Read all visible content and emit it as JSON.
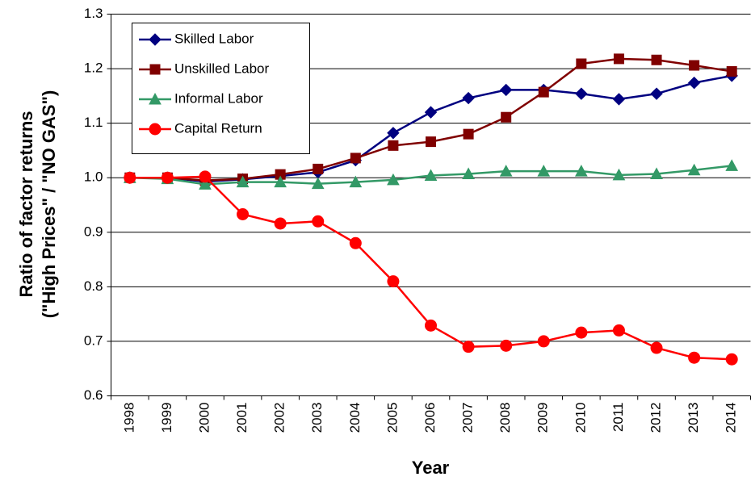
{
  "chart_data": {
    "type": "line",
    "ylabel": [
      "Ratio of factor returns",
      "(\"High Prices\" / \"NO GAS\")"
    ],
    "xlabel": "Year",
    "categories": [
      "1998",
      "1999",
      "2000",
      "2001",
      "2002",
      "2003",
      "2004",
      "2005",
      "2006",
      "2007",
      "2008",
      "2009",
      "2010",
      "2011",
      "2012",
      "2013",
      "2014"
    ],
    "series": [
      {
        "name": "Skilled Labor",
        "color": "#000080",
        "marker": "diamond",
        "values": [
          1.0,
          1.0,
          0.993,
          0.997,
          1.003,
          1.01,
          1.032,
          1.082,
          1.12,
          1.146,
          1.161,
          1.161,
          1.154,
          1.144,
          1.154,
          1.174,
          1.187
        ]
      },
      {
        "name": "Unskilled Labor",
        "color": "#800000",
        "marker": "square",
        "values": [
          1.0,
          1.0,
          0.995,
          0.998,
          1.006,
          1.016,
          1.036,
          1.059,
          1.066,
          1.08,
          1.111,
          1.157,
          1.209,
          1.218,
          1.216,
          1.206,
          1.195
        ]
      },
      {
        "name": "Informal Labor",
        "color": "#339966",
        "marker": "triangle",
        "values": [
          1.0,
          0.998,
          0.988,
          0.992,
          0.992,
          0.989,
          0.992,
          0.996,
          1.004,
          1.007,
          1.012,
          1.012,
          1.012,
          1.005,
          1.007,
          1.014,
          1.022
        ]
      },
      {
        "name": "Capital Return",
        "color": "#ff0000",
        "marker": "circle",
        "values": [
          1.0,
          1.0,
          1.002,
          0.933,
          0.916,
          0.92,
          0.88,
          0.81,
          0.729,
          0.69,
          0.692,
          0.7,
          0.716,
          0.72,
          0.688,
          0.67,
          0.667
        ]
      }
    ],
    "ylim": [
      0.6,
      1.3
    ],
    "yticks": [
      0.6,
      0.7,
      0.8,
      0.9,
      {
        "value": 1.0,
        "label": "1.0"
      },
      1.1,
      1.2,
      1.3
    ],
    "grid": true
  }
}
